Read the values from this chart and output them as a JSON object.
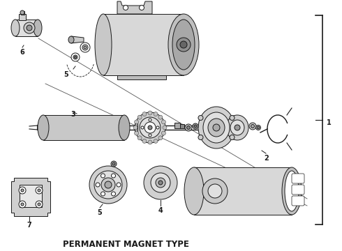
{
  "title": "PERMANENT MAGNET TYPE",
  "title_fontsize": 8.5,
  "title_fontweight": "bold",
  "bg_color": "#ffffff",
  "lc": "#1a1a1a",
  "fig_width": 4.9,
  "fig_height": 3.6,
  "dpi": 100,
  "labels": {
    "1": "1",
    "2": "2",
    "3": "3",
    "4": "4",
    "5": "5",
    "6": "6",
    "7": "7"
  }
}
